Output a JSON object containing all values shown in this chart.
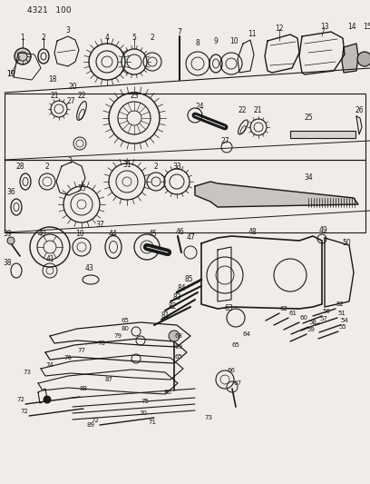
{
  "title": "4321 100",
  "bg_color": "#f0ede8",
  "line_color": "#1a1a1a",
  "label_color": "#1a1a1a",
  "fig_width": 4.08,
  "fig_height": 5.33,
  "dpi": 100
}
